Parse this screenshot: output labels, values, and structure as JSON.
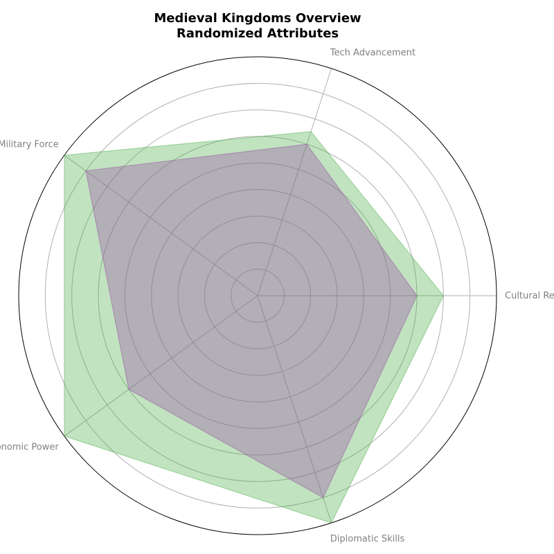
{
  "chart_data": {
    "type": "radar",
    "title": [
      "Medieval Kingdoms Overview",
      "Randomized Attributes"
    ],
    "categories": [
      "Cultural Reach",
      "Tech Advancement",
      "Military Force",
      "Economic Power",
      "Diplomatic Skills"
    ],
    "rmax": 9,
    "grid_levels": [
      1,
      2,
      3,
      4,
      5,
      6,
      7,
      8
    ],
    "tick_labels_shown": false,
    "grid": true,
    "legend": "none",
    "series": [
      {
        "values": [
          7,
          6.5,
          9,
          9,
          9
        ],
        "color": "#4daf4a",
        "opacity": 0.35
      },
      {
        "values": [
          6,
          6,
          8,
          6,
          8
        ],
        "color": "#984ea3",
        "opacity": 0.35
      }
    ]
  }
}
